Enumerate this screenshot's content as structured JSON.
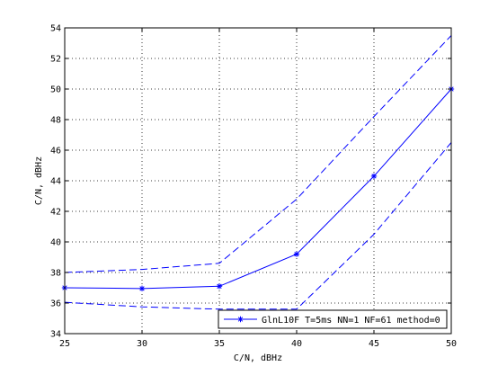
{
  "chart_data": {
    "type": "line",
    "title": "",
    "xlabel": "C/N, dBHz",
    "ylabel": "C/N, dBHz",
    "xlim": [
      25,
      50
    ],
    "ylim": [
      34,
      54
    ],
    "xticks": [
      25,
      30,
      35,
      40,
      45,
      50
    ],
    "yticks": [
      34,
      36,
      38,
      40,
      42,
      44,
      46,
      48,
      50,
      52,
      54
    ],
    "grid": true,
    "legend": {
      "position": "bottom-right"
    },
    "x": [
      25,
      30,
      35,
      40,
      45,
      50
    ],
    "series": [
      {
        "name": "GlnL10F T=5ms NN=1 NF=61 method=0",
        "role": "mean",
        "values": [
          37.0,
          36.95,
          37.1,
          39.2,
          44.3,
          50.0
        ],
        "color": "#0000ff",
        "style": "solid",
        "marker": "asterisk"
      },
      {
        "role": "upper",
        "values": [
          38.0,
          38.2,
          38.6,
          42.8,
          48.2,
          53.5
        ],
        "color": "#0000ff",
        "style": "dashed"
      },
      {
        "role": "lower",
        "values": [
          36.05,
          35.75,
          35.6,
          35.6,
          40.5,
          46.5
        ],
        "color": "#0000ff",
        "style": "dashed"
      }
    ]
  }
}
